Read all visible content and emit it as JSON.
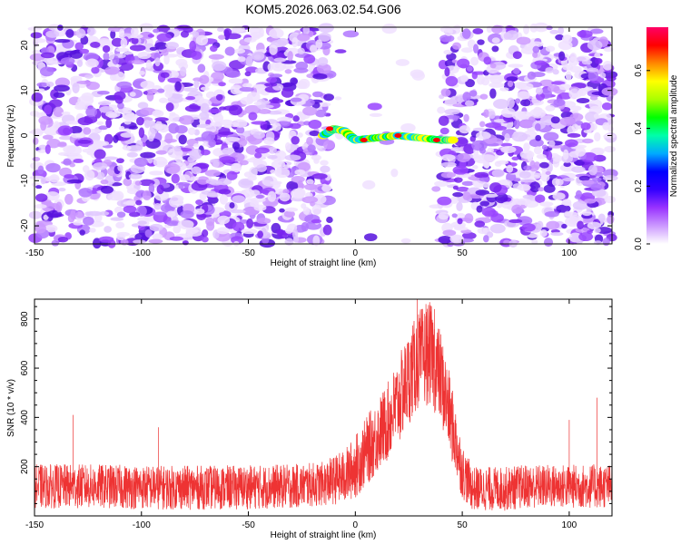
{
  "title": "KOM5.2026.063.02.54.G06",
  "chart_data": [
    {
      "type": "heatmap",
      "xlabel": "Height of straight line (km)",
      "ylabel": "Frequency (Hz)",
      "xlim": [
        -150,
        120
      ],
      "ylim": [
        -24,
        24
      ],
      "xticks": [
        -150,
        -100,
        -50,
        0,
        50,
        100
      ],
      "yticks": [
        -20,
        -10,
        0,
        10,
        20
      ],
      "colorbar": {
        "label": "Normalized spectral amplitude",
        "range": [
          0,
          0.75
        ],
        "ticks": [
          0.0,
          0.2,
          0.4,
          0.6
        ],
        "colors": [
          "#ffffff",
          "#cc99ff",
          "#9933ff",
          "#3300ff",
          "#0000ff",
          "#00aaff",
          "#00ffaa",
          "#00ff00",
          "#aaff00",
          "#ffff00",
          "#ff8800",
          "#ff0000",
          "#ff0066"
        ]
      },
      "features": [
        {
          "name": "noise-left",
          "x_range": [
            -150,
            -12
          ],
          "y_range": [
            -24,
            24
          ],
          "amplitude": 0.15
        },
        {
          "name": "gap",
          "x_range": [
            -12,
            40
          ],
          "y_range": [
            -24,
            24
          ],
          "amplitude": 0.0
        },
        {
          "name": "noise-right",
          "x_range": [
            40,
            120
          ],
          "y_range": [
            -24,
            24
          ],
          "amplitude": 0.15
        },
        {
          "name": "signal-band",
          "points": [
            [
              -15,
              0
            ],
            [
              -10,
              1.5
            ],
            [
              -5,
              1
            ],
            [
              0,
              -1
            ],
            [
              10,
              -0.5
            ],
            [
              20,
              0
            ],
            [
              30,
              -0.5
            ],
            [
              40,
              -1
            ],
            [
              46,
              -1
            ]
          ],
          "amplitude": 0.7
        }
      ]
    },
    {
      "type": "line",
      "xlabel": "Height of straight line (km)",
      "ylabel": "SNR (10 * v/v)",
      "xlim": [
        -150,
        120
      ],
      "ylim": [
        0,
        880
      ],
      "xticks": [
        -150,
        -100,
        -50,
        0,
        50,
        100
      ],
      "yticks": [
        200,
        400,
        600,
        800
      ],
      "color": "#ee3333",
      "envelope": {
        "x": [
          -150,
          -120,
          -90,
          -60,
          -30,
          -15,
          -5,
          0,
          5,
          10,
          15,
          20,
          25,
          30,
          35,
          40,
          45,
          50,
          55,
          60,
          70,
          80,
          90,
          100,
          110,
          120
        ],
        "mean": [
          120,
          120,
          115,
          115,
          120,
          130,
          160,
          200,
          260,
          320,
          380,
          460,
          560,
          640,
          660,
          560,
          380,
          180,
          110,
          110,
          110,
          120,
          120,
          120,
          120,
          120
        ],
        "spread": [
          90,
          90,
          90,
          90,
          90,
          90,
          110,
          130,
          140,
          150,
          160,
          180,
          190,
          200,
          210,
          190,
          160,
          110,
          90,
          90,
          90,
          90,
          90,
          90,
          90,
          90
        ]
      },
      "peaks": [
        [
          -150,
          300
        ],
        [
          -132,
          410
        ],
        [
          -92,
          360
        ],
        [
          29,
          880
        ],
        [
          33,
          860
        ],
        [
          37,
          840
        ],
        [
          100,
          390
        ],
        [
          113,
          480
        ]
      ]
    }
  ]
}
